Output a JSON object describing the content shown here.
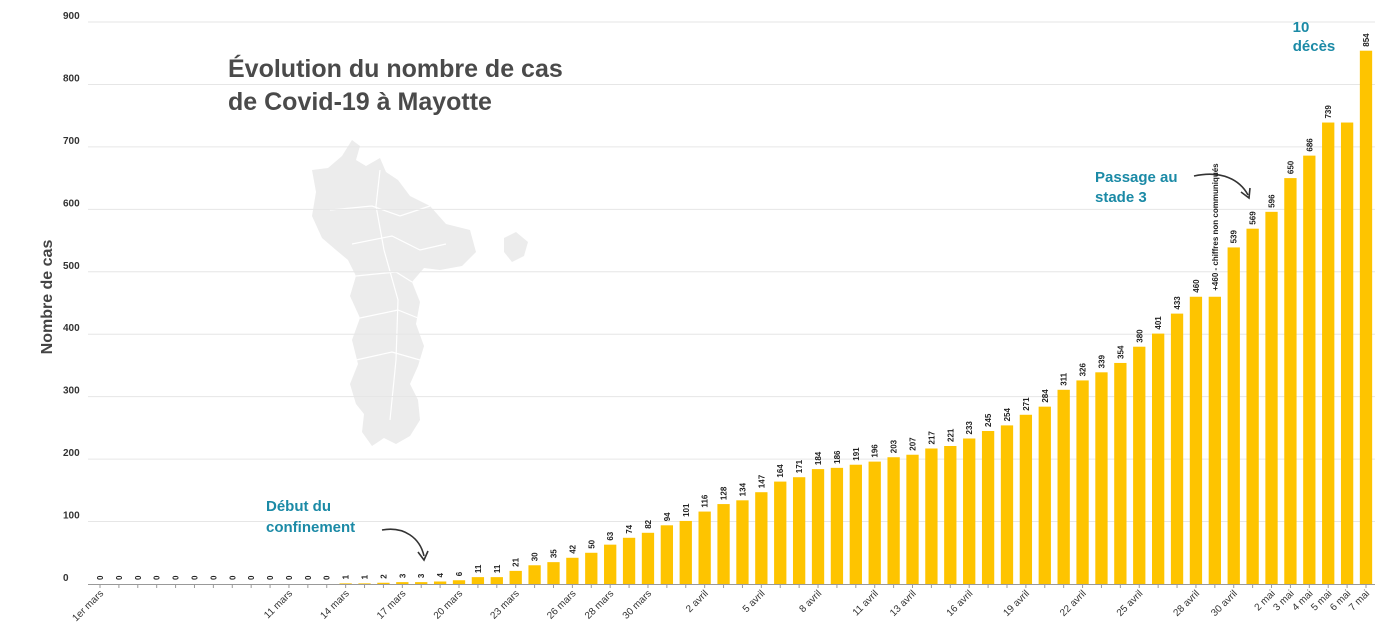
{
  "title_lines": [
    "Évolution du nombre de cas",
    "de Covid-19 à Mayotte"
  ],
  "colors": {
    "bar": "#FEC400",
    "annotation": "#1b8aa6",
    "grid": "#e6e6e6",
    "map": "#ececec"
  },
  "icons": {
    "background": "mayotte-map-silhouette",
    "arrows": "curved-arrow"
  },
  "annotations": {
    "confinement": [
      "Début du",
      "confinement"
    ],
    "stade3": [
      "Passage au",
      "stade 3"
    ],
    "deces": [
      "10",
      "décès"
    ],
    "non_communiques": "+460 - chiffres non communiqués"
  },
  "chart_data": {
    "type": "bar",
    "ylabel": "Nombre de cas",
    "xlabel": "",
    "ylim": [
      0,
      900
    ],
    "yticks": [
      0,
      100,
      200,
      300,
      400,
      500,
      600,
      700,
      800,
      900
    ],
    "grid": true,
    "values": [
      0,
      0,
      0,
      0,
      0,
      0,
      0,
      0,
      0,
      0,
      0,
      0,
      0,
      1,
      1,
      2,
      3,
      3,
      4,
      6,
      11,
      11,
      21,
      30,
      35,
      42,
      50,
      63,
      74,
      82,
      94,
      101,
      116,
      128,
      134,
      147,
      164,
      171,
      184,
      186,
      191,
      196,
      203,
      207,
      217,
      221,
      233,
      245,
      254,
      271,
      284,
      311,
      326,
      339,
      354,
      380,
      401,
      433,
      460,
      460,
      539,
      569,
      596,
      650,
      686,
      739,
      739,
      854
    ],
    "value_labels": [
      "0",
      "0",
      "0",
      "0",
      "0",
      "0",
      "0",
      "0",
      "0",
      "0",
      "0",
      "0",
      "0",
      "1",
      "1",
      "2",
      "3",
      "3",
      "4",
      "6",
      "11",
      "11",
      "21",
      "30",
      "35",
      "42",
      "50",
      "63",
      "74",
      "82",
      "94",
      "101",
      "116",
      "128",
      "134",
      "147",
      "164",
      "171",
      "184",
      "186",
      "191",
      "196",
      "203",
      "207",
      "217",
      "221",
      "233",
      "245",
      "254",
      "271",
      "284",
      "311",
      "326",
      "339",
      "354",
      "380",
      "401",
      "433",
      "460",
      "",
      "539",
      "569",
      "596",
      "650",
      "686",
      "739",
      "",
      "854"
    ],
    "x_tick_labels": [
      {
        "index": 0,
        "label": "1er mars"
      },
      {
        "index": 10,
        "label": "11 mars"
      },
      {
        "index": 13,
        "label": "14 mars"
      },
      {
        "index": 16,
        "label": "17 mars"
      },
      {
        "index": 19,
        "label": "20 mars"
      },
      {
        "index": 22,
        "label": "23 mars"
      },
      {
        "index": 25,
        "label": "26 mars"
      },
      {
        "index": 27,
        "label": "28 mars"
      },
      {
        "index": 29,
        "label": "30 mars"
      },
      {
        "index": 32,
        "label": "2 avril"
      },
      {
        "index": 35,
        "label": "5 avril"
      },
      {
        "index": 38,
        "label": "8 avril"
      },
      {
        "index": 41,
        "label": "11 avril"
      },
      {
        "index": 43,
        "label": "13 avril"
      },
      {
        "index": 46,
        "label": "16 avril"
      },
      {
        "index": 49,
        "label": "19 avril"
      },
      {
        "index": 52,
        "label": "22 avril"
      },
      {
        "index": 55,
        "label": "25 avril"
      },
      {
        "index": 58,
        "label": "28 avril"
      },
      {
        "index": 60,
        "label": "30 avril"
      },
      {
        "index": 62,
        "label": "2 mai"
      },
      {
        "index": 63,
        "label": "3 mai"
      },
      {
        "index": 64,
        "label": "4 mai"
      },
      {
        "index": 65,
        "label": "5 mai"
      },
      {
        "index": 66,
        "label": "6 mai"
      },
      {
        "index": 67,
        "label": "7 mai"
      }
    ]
  }
}
